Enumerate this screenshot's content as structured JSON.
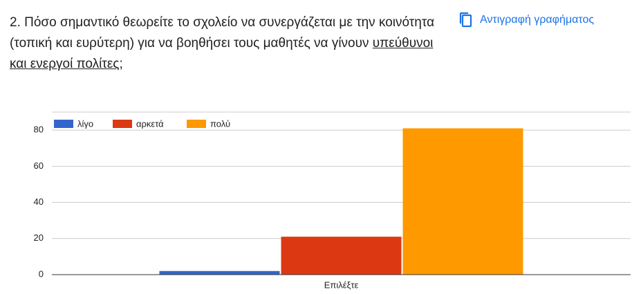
{
  "copy_button": "Αντιγραφή γραφήματος",
  "chart_data": {
    "type": "bar",
    "title": [
      "2. Πόσο σημαντικό θεωρείτε το σχολείο να  συνεργάζεται με την κοινότητα (τοπική και ευρύτερη) για να βοηθήσει τους μαθητές να γίνουν ",
      "υπεύθυνοι και ενεργοί πολίτες",
      ";"
    ],
    "categories": [
      "Επιλέξτε"
    ],
    "series": [
      {
        "name": "λίγο",
        "color": "#3366cc",
        "values": [
          2
        ]
      },
      {
        "name": "αρκετά",
        "color": "#dc3912",
        "values": [
          21
        ]
      },
      {
        "name": "πολύ",
        "color": "#ff9900",
        "values": [
          81
        ]
      }
    ],
    "ylim": [
      0,
      90
    ],
    "yticks": [
      0,
      20,
      40,
      60,
      80
    ],
    "grid": true,
    "legend": "top"
  }
}
